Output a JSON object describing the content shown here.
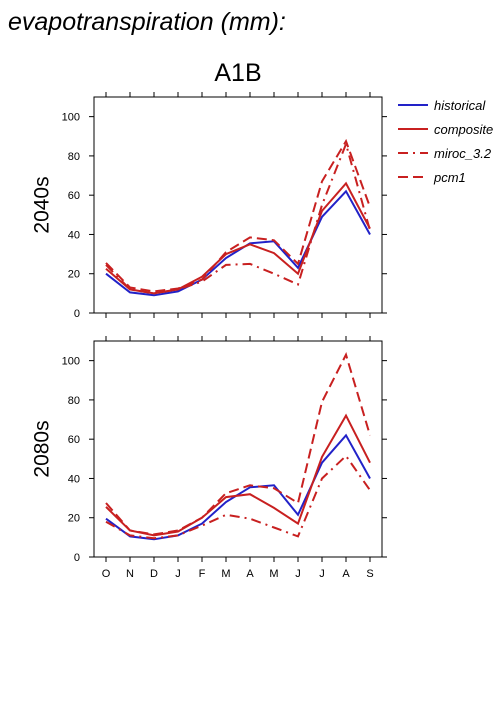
{
  "figure": {
    "title": "evapotranspiration (mm):",
    "scenario": "A1B"
  },
  "chart_data": [
    {
      "type": "line",
      "panel_label": "2040s",
      "categories": [
        "O",
        "N",
        "D",
        "J",
        "F",
        "M",
        "A",
        "M",
        "J",
        "J",
        "A",
        "S"
      ],
      "ylim": [
        0,
        110
      ],
      "yticks": [
        0,
        20,
        40,
        60,
        80,
        100
      ],
      "grid": false,
      "series": [
        {
          "name": "historical",
          "color": "#2222c8",
          "dash": "solid",
          "values": [
            20,
            10.5,
            9,
            11,
            17,
            28,
            35.5,
            36.5,
            23,
            49,
            62,
            40
          ]
        },
        {
          "name": "composite",
          "color": "#c82020",
          "dash": "solid",
          "values": [
            22.5,
            12,
            10,
            12,
            18.5,
            30,
            35,
            30.5,
            20,
            52,
            66,
            43
          ]
        },
        {
          "name": "miroc_3.2",
          "color": "#c82020",
          "dash": "dashdot",
          "values": [
            24.5,
            12,
            10,
            12,
            16,
            24.5,
            25,
            20,
            14.5,
            55,
            86,
            42
          ]
        },
        {
          "name": "pcm1",
          "color": "#c82020",
          "dash": "dashed",
          "values": [
            25.5,
            13,
            11,
            12.5,
            17,
            31,
            38.5,
            37,
            25,
            67,
            87.5,
            54
          ]
        }
      ]
    },
    {
      "type": "line",
      "panel_label": "2080s",
      "categories": [
        "O",
        "N",
        "D",
        "J",
        "F",
        "M",
        "A",
        "M",
        "J",
        "J",
        "A",
        "S"
      ],
      "ylim": [
        0,
        110
      ],
      "yticks": [
        0,
        20,
        40,
        60,
        80,
        100
      ],
      "grid": false,
      "series": [
        {
          "name": "historical",
          "color": "#2222c8",
          "dash": "solid",
          "values": [
            19.5,
            10.5,
            9,
            11,
            17,
            28,
            35.5,
            36.5,
            21.5,
            48,
            62,
            40
          ]
        },
        {
          "name": "composite",
          "color": "#c82020",
          "dash": "solid",
          "values": [
            25.5,
            13.5,
            11,
            13,
            20,
            30.5,
            32,
            25,
            17,
            51,
            72,
            48
          ]
        },
        {
          "name": "miroc_3.2",
          "color": "#c82020",
          "dash": "dashdot",
          "values": [
            18,
            11,
            9.5,
            11,
            16,
            21.5,
            19.5,
            15,
            10.5,
            40,
            51.5,
            34
          ]
        },
        {
          "name": "pcm1",
          "color": "#c82020",
          "dash": "dashed",
          "values": [
            27.5,
            13.5,
            11.5,
            13.5,
            20,
            32.5,
            36.5,
            35,
            27.5,
            79,
            103,
            62
          ]
        }
      ]
    }
  ],
  "legend": {
    "placement": "right",
    "entries": [
      {
        "name": "historical",
        "color": "#2222c8",
        "dash": "solid"
      },
      {
        "name": "composite",
        "color": "#c82020",
        "dash": "solid"
      },
      {
        "name": "miroc_3.2",
        "color": "#c82020",
        "dash": "dashdot"
      },
      {
        "name": "pcm1",
        "color": "#c82020",
        "dash": "dashed"
      }
    ]
  }
}
